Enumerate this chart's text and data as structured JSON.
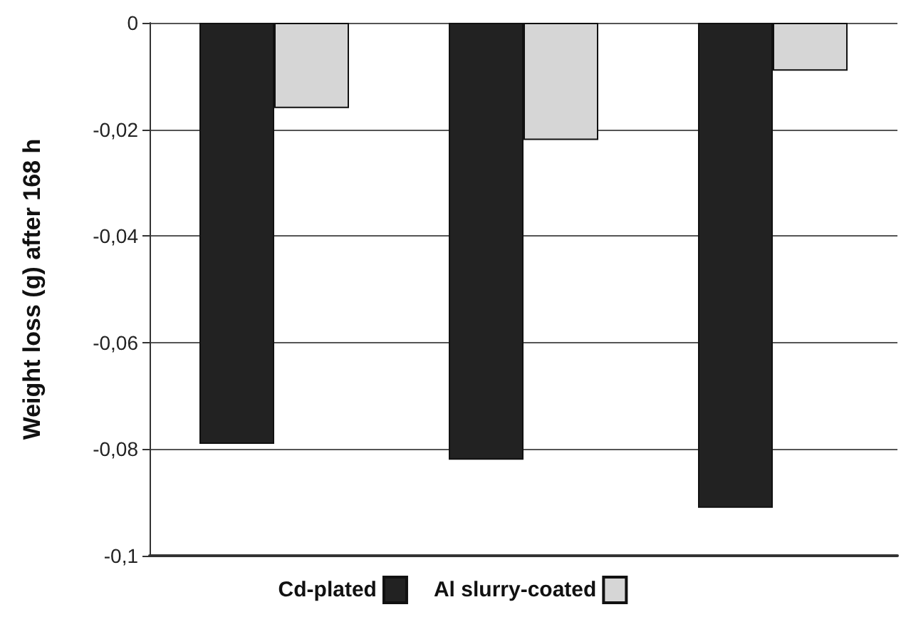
{
  "chart_data": {
    "type": "bar",
    "ylabel": "Weight loss (g) after 168 h",
    "categories": [
      null,
      null,
      null
    ],
    "series": [
      {
        "name": "Cd-plated",
        "color": "#222222",
        "values": [
          -0.079,
          -0.082,
          -0.091
        ]
      },
      {
        "name": "Al slurry-coated",
        "color": "#d6d6d6",
        "values": [
          -0.016,
          -0.022,
          -0.009
        ]
      }
    ],
    "ylim": [
      -0.1,
      0
    ],
    "yticks": [
      {
        "value": -0.1,
        "label": "-0,1"
      },
      {
        "value": -0.08,
        "label": "-0,08"
      },
      {
        "value": -0.06,
        "label": "-0,06"
      },
      {
        "value": -0.04,
        "label": "-0,04"
      },
      {
        "value": -0.02,
        "label": "-0,02"
      },
      {
        "value": 0,
        "label": "0"
      }
    ],
    "grid": "y",
    "legend": "bottom"
  }
}
